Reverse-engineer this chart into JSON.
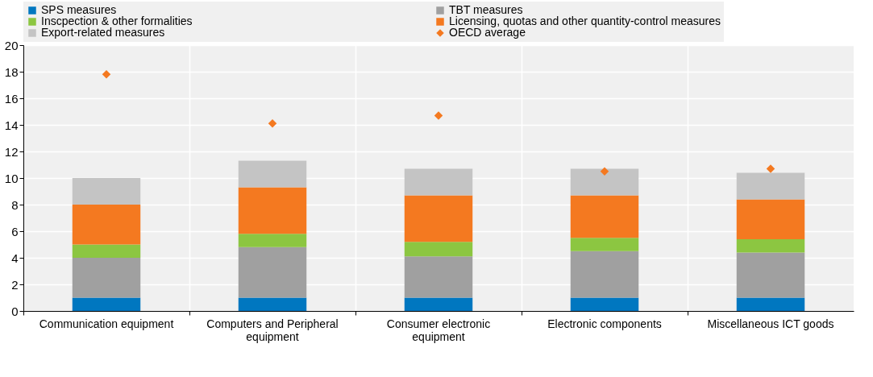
{
  "chart_data": {
    "type": "bar",
    "stacked": true,
    "categories": [
      "Communication equipment",
      "Computers and Peripheral equipment",
      "Consumer electronic equipment",
      "Electronic components",
      "Miscellaneous ICT goods"
    ],
    "series": [
      {
        "name": "SPS measures",
        "color": "#0077c0",
        "values": [
          1,
          1,
          1,
          1,
          1
        ]
      },
      {
        "name": "TBT measures",
        "color": "#a0a0a0",
        "values": [
          3,
          3.8,
          3.1,
          3.5,
          3.4
        ]
      },
      {
        "name": "Inscpection & other formalities",
        "color": "#8cc641",
        "values": [
          1,
          1,
          1.1,
          1,
          1
        ]
      },
      {
        "name": "Licensing, quotas and other quantity-control measures",
        "color": "#f47920",
        "values": [
          3,
          3.5,
          3.5,
          3.2,
          3
        ]
      },
      {
        "name": "Export-related measures",
        "color": "#c4c4c4",
        "values": [
          2,
          2,
          2,
          2,
          2
        ]
      },
      {
        "name": "OECD average",
        "type": "scatter",
        "marker": "diamond",
        "color": "#f47920",
        "values": [
          17.8,
          14.1,
          14.7,
          10.5,
          10.7
        ]
      }
    ],
    "ylim": [
      0,
      20
    ],
    "yticks": [
      0,
      2,
      4,
      6,
      8,
      10,
      12,
      14,
      16,
      18,
      20
    ],
    "grid": true,
    "legend": "top"
  }
}
